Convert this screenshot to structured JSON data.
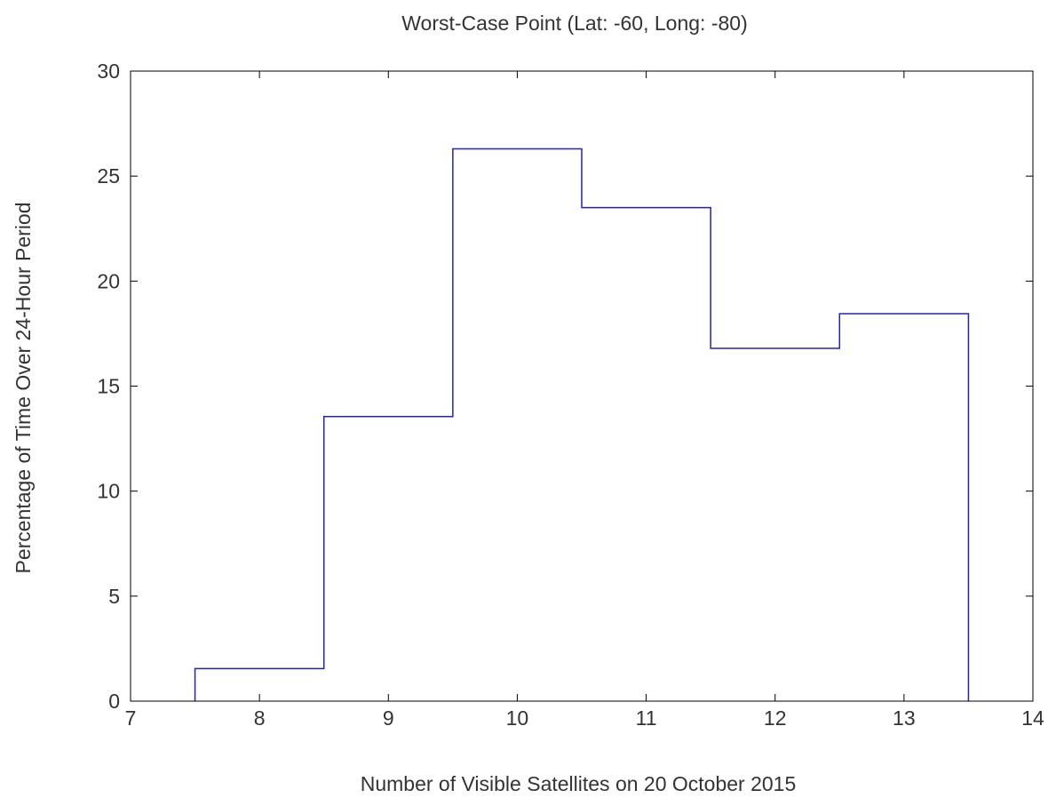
{
  "chart_data": {
    "type": "bar",
    "style": "step-histogram",
    "title": "Worst-Case Point (Lat: -60, Long: -80)",
    "xlabel": "Number of Visible Satellites on 20 October 2015",
    "ylabel": "Percentage of Time Over 24-Hour Period",
    "xlim": [
      7,
      14
    ],
    "ylim": [
      0,
      30
    ],
    "xticks": [
      7,
      8,
      9,
      10,
      11,
      12,
      13,
      14
    ],
    "yticks": [
      0,
      5,
      10,
      15,
      20,
      25,
      30
    ],
    "categories": [
      8,
      9,
      10,
      11,
      12,
      13
    ],
    "values": [
      1.55,
      13.55,
      26.3,
      23.5,
      16.8,
      18.45
    ],
    "bin_width": 1,
    "line_color": "#2222bb",
    "grid": false
  }
}
